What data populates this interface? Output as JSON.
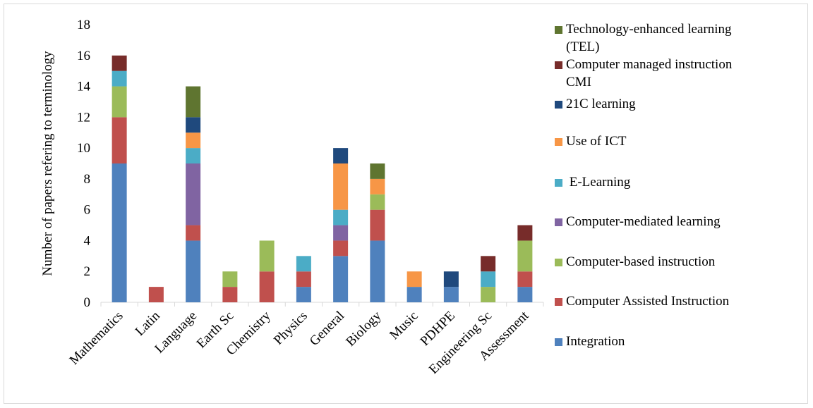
{
  "chart_data": {
    "type": "bar",
    "stacked": true,
    "ylabel": "Number of papers refering to terminology",
    "xlabel": "",
    "ylim": [
      0,
      18
    ],
    "y_ticks": [
      0,
      2,
      4,
      6,
      8,
      10,
      12,
      14,
      16,
      18
    ],
    "grid": false,
    "legend_position": "right",
    "categories": [
      "Mathematics",
      "Latin",
      "Language",
      "Earth Sc",
      "Chemistry",
      "Physics",
      "General",
      "Biology",
      "Music",
      "PDHPE",
      "Engineering Sc",
      "Assessment"
    ],
    "series": [
      {
        "name": "Integration",
        "color": "#4f81bd",
        "values": [
          9,
          0,
          4,
          0,
          0,
          1,
          3,
          4,
          1,
          1,
          0,
          1
        ]
      },
      {
        "name": "Computer Assisted Instruction",
        "color": "#c0504d",
        "values": [
          3,
          1,
          1,
          1,
          2,
          1,
          1,
          2,
          0,
          0,
          0,
          1
        ]
      },
      {
        "name": "Computer-based instruction",
        "color": "#9bbb59",
        "values": [
          2,
          0,
          0,
          1,
          2,
          0,
          0,
          1,
          0,
          0,
          1,
          2
        ]
      },
      {
        "name": "Computer-mediated learning",
        "color": "#8064a2",
        "values": [
          0,
          0,
          4,
          0,
          0,
          0,
          1,
          0,
          0,
          0,
          0,
          0
        ]
      },
      {
        "name": " E-Learning",
        "color": "#4bacc6",
        "values": [
          1,
          0,
          1,
          0,
          0,
          1,
          1,
          0,
          0,
          0,
          1,
          0
        ]
      },
      {
        "name": "Use of ICT",
        "color": "#f79646",
        "values": [
          0,
          0,
          1,
          0,
          0,
          0,
          3,
          1,
          1,
          0,
          0,
          0
        ]
      },
      {
        "name": "21C learning",
        "color": "#1f497d",
        "values": [
          0,
          0,
          1,
          0,
          0,
          0,
          1,
          0,
          0,
          1,
          0,
          0
        ]
      },
      {
        "name": "Computer managed instruction CMI",
        "color": "#772c2a",
        "values": [
          1,
          0,
          0,
          0,
          0,
          0,
          0,
          0,
          0,
          0,
          1,
          1
        ]
      },
      {
        "name": "Technology-enhanced learning (TEL)",
        "color": "#5f7530",
        "values": [
          0,
          0,
          2,
          0,
          0,
          0,
          0,
          1,
          0,
          0,
          0,
          0
        ]
      }
    ],
    "legend_lines": [
      [
        "Technology-enhanced learning",
        "(TEL)"
      ],
      [
        "Computer managed instruction",
        "CMI"
      ],
      [
        "21C learning"
      ],
      [
        "Use of ICT"
      ],
      [
        " E-Learning"
      ],
      [
        "Computer-mediated learning"
      ],
      [
        "Computer-based instruction"
      ],
      [
        "Computer Assisted Instruction"
      ],
      [
        "Integration"
      ]
    ]
  }
}
